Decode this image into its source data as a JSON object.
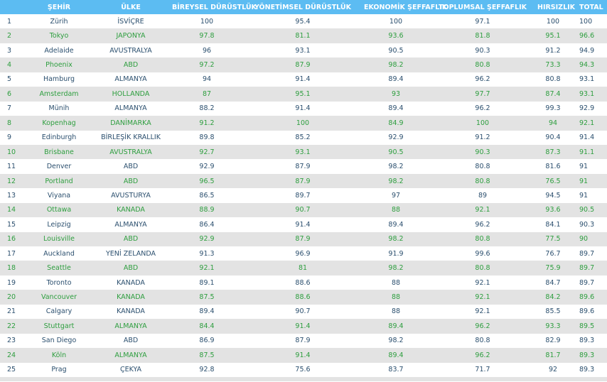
{
  "colors": {
    "header_bg": "#5cbcf2",
    "header_text": "#ffffff",
    "odd_text": "#2b4f6e",
    "even_text": "#2e9e3f",
    "even_bg": "#e3e3e3"
  },
  "table": {
    "headers": [
      "",
      "ŞEHİR",
      "ÜLKE",
      "BİREYSEL DÜRÜSTLÜK",
      "YÖNETİMSEL DÜRÜSTLÜK",
      "EKONOMİK ŞEFFAFLIK",
      "TOPLUMSAL ŞEFFAFLIK",
      "HIRSIZLIK",
      "TOTAL"
    ],
    "rows": [
      [
        "1",
        "Zürih",
        "İSVİÇRE",
        "100",
        "95.4",
        "100",
        "97.1",
        "100",
        "100"
      ],
      [
        "2",
        "Tokyo",
        "JAPONYA",
        "97.8",
        "81.1",
        "93.6",
        "81.8",
        "95.1",
        "96.6"
      ],
      [
        "3",
        "Adelaide",
        "AVUSTRALYA",
        "96",
        "93.1",
        "90.5",
        "90.3",
        "91.2",
        "94.9"
      ],
      [
        "4",
        "Phoenix",
        "ABD",
        "97.2",
        "87.9",
        "98.2",
        "80.8",
        "73.3",
        "94.3"
      ],
      [
        "5",
        "Hamburg",
        "ALMANYA",
        "94",
        "91.4",
        "89.4",
        "96.2",
        "80.8",
        "93.1"
      ],
      [
        "6",
        "Amsterdam",
        "HOLLANDA",
        "87",
        "95.1",
        "93",
        "97.7",
        "87.4",
        "93.1"
      ],
      [
        "7",
        "Münih",
        "ALMANYA",
        "88.2",
        "91.4",
        "89.4",
        "96.2",
        "99.3",
        "92.9"
      ],
      [
        "8",
        "Kopenhag",
        "DANİMARKA",
        "91.2",
        "100",
        "84.9",
        "100",
        "94",
        "92.1"
      ],
      [
        "9",
        "Edinburgh",
        "BİRLEŞİK KRALLIK",
        "89.8",
        "85.2",
        "92.9",
        "91.2",
        "90.4",
        "91.4"
      ],
      [
        "10",
        "Brisbane",
        "AVUSTRALYA",
        "92.7",
        "93.1",
        "90.5",
        "90.3",
        "87.3",
        "91.1"
      ],
      [
        "11",
        "Denver",
        "ABD",
        "92.9",
        "87.9",
        "98.2",
        "80.8",
        "81.6",
        "91"
      ],
      [
        "12",
        "Portland",
        "ABD",
        "96.5",
        "87.9",
        "98.2",
        "80.8",
        "76.5",
        "91"
      ],
      [
        "13",
        "Viyana",
        "AVUSTURYA",
        "86.5",
        "89.7",
        "97",
        "89",
        "94.5",
        "91"
      ],
      [
        "14",
        "Ottawa",
        "KANADA",
        "88.9",
        "90.7",
        "88",
        "92.1",
        "93.6",
        "90.5"
      ],
      [
        "15",
        "Leipzig",
        "ALMANYA",
        "86.4",
        "91.4",
        "89.4",
        "96.2",
        "84.1",
        "90.3"
      ],
      [
        "16",
        "Louisville",
        "ABD",
        "92.9",
        "87.9",
        "98.2",
        "80.8",
        "77.5",
        "90"
      ],
      [
        "17",
        "Auckland",
        "YENİ ZELANDA",
        "91.3",
        "96.9",
        "91.9",
        "99.6",
        "76.7",
        "89.7"
      ],
      [
        "18",
        "Seattle",
        "ABD",
        "92.1",
        "81",
        "98.2",
        "80.8",
        "75.9",
        "89.7"
      ],
      [
        "19",
        "Toronto",
        "KANADA",
        "89.1",
        "88.6",
        "88",
        "92.1",
        "84.7",
        "89.7"
      ],
      [
        "20",
        "Vancouver",
        "KANADA",
        "87.5",
        "88.6",
        "88",
        "92.1",
        "84.2",
        "89.6"
      ],
      [
        "21",
        "Calgary",
        "KANADA",
        "89.4",
        "90.7",
        "88",
        "92.1",
        "85.5",
        "89.6"
      ],
      [
        "22",
        "Stuttgart",
        "ALMANYA",
        "84.4",
        "91.4",
        "89.4",
        "96.2",
        "93.3",
        "89.5"
      ],
      [
        "23",
        "San Diego",
        "ABD",
        "86.9",
        "87.9",
        "98.2",
        "80.8",
        "82.9",
        "89.3"
      ],
      [
        "24",
        "Köln",
        "ALMANYA",
        "87.5",
        "91.4",
        "89.4",
        "96.2",
        "81.7",
        "89.3"
      ],
      [
        "25",
        "Prag",
        "ÇEKYA",
        "92.8",
        "75.6",
        "83.7",
        "71.7",
        "92",
        "89.3"
      ]
    ]
  }
}
